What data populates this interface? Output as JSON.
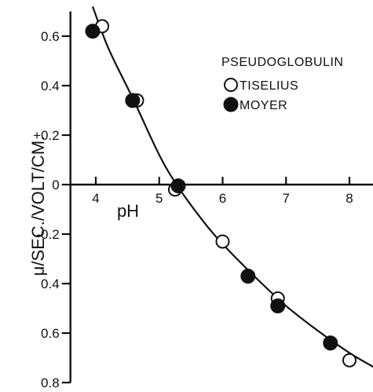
{
  "chart_data": {
    "type": "scatter",
    "title": "",
    "xlabel": "pH",
    "ylabel": "μ/SEC./VOLT/CM.",
    "xlim": [
      3.6,
      8.4
    ],
    "ylim": [
      -0.8,
      0.7
    ],
    "grid": false,
    "legend": {
      "title": "PSEUDOGLOBULIN",
      "position": "top-right",
      "entries": [
        {
          "label": "TISELIUS",
          "marker": "open-circle"
        },
        {
          "label": "MOYER",
          "marker": "filled-circle"
        }
      ]
    },
    "x_ticks": [
      {
        "value": 4,
        "label": "4"
      },
      {
        "value": 5,
        "label": "5"
      },
      {
        "value": 6,
        "label": "6"
      },
      {
        "value": 7,
        "label": "7"
      },
      {
        "value": 8,
        "label": "8"
      }
    ],
    "y_ticks": [
      {
        "value": 0.6,
        "label": "0.6"
      },
      {
        "value": 0.4,
        "label": "0.4"
      },
      {
        "value": 0.2,
        "label": "+0.2"
      },
      {
        "value": 0,
        "label": "0"
      },
      {
        "value": -0.2,
        "label": "-0.2"
      },
      {
        "value": -0.4,
        "label": "0.4"
      },
      {
        "value": -0.6,
        "label": "0.6"
      },
      {
        "value": -0.8,
        "label": "0.8"
      }
    ],
    "series": [
      {
        "name": "TISELIUS",
        "marker": "open-circle",
        "points": [
          {
            "x": 4.1,
            "y": 0.64
          },
          {
            "x": 4.65,
            "y": 0.34
          },
          {
            "x": 5.25,
            "y": -0.02
          },
          {
            "x": 6.0,
            "y": -0.23
          },
          {
            "x": 6.87,
            "y": -0.46
          },
          {
            "x": 8.0,
            "y": -0.71
          }
        ]
      },
      {
        "name": "MOYER",
        "marker": "filled-circle",
        "points": [
          {
            "x": 3.95,
            "y": 0.62
          },
          {
            "x": 4.58,
            "y": 0.34
          },
          {
            "x": 5.3,
            "y": -0.005
          },
          {
            "x": 6.4,
            "y": -0.37
          },
          {
            "x": 6.87,
            "y": -0.49
          },
          {
            "x": 7.7,
            "y": -0.64
          }
        ]
      }
    ],
    "fit_curve": [
      {
        "x": 3.95,
        "y": 0.72
      },
      {
        "x": 4.2,
        "y": 0.55
      },
      {
        "x": 4.6,
        "y": 0.34
      },
      {
        "x": 5.0,
        "y": 0.12
      },
      {
        "x": 5.3,
        "y": -0.01
      },
      {
        "x": 5.7,
        "y": -0.15
      },
      {
        "x": 6.0,
        "y": -0.24
      },
      {
        "x": 6.5,
        "y": -0.37
      },
      {
        "x": 7.0,
        "y": -0.49
      },
      {
        "x": 7.5,
        "y": -0.59
      },
      {
        "x": 8.0,
        "y": -0.68
      },
      {
        "x": 8.4,
        "y": -0.74
      }
    ]
  }
}
